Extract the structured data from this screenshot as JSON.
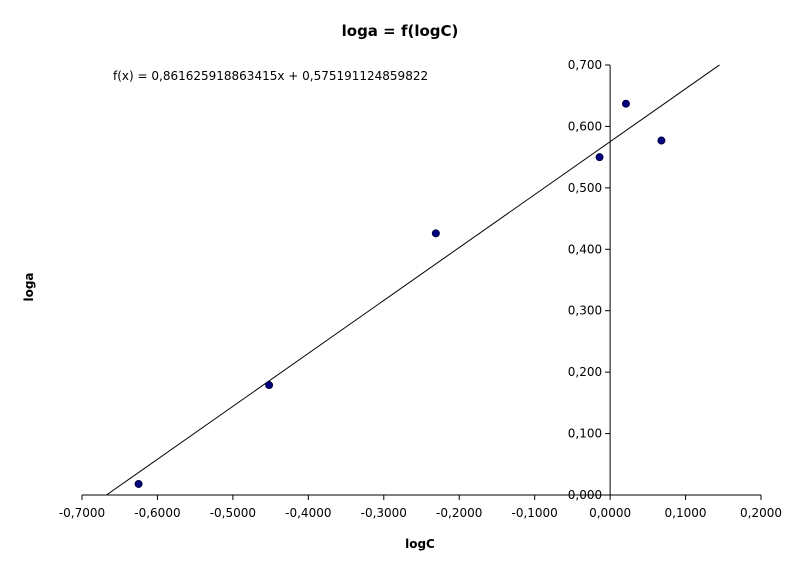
{
  "chart_data": {
    "type": "scatter",
    "title": "loga = f(logC)",
    "xlabel": "logC",
    "ylabel": "loga",
    "xlim": [
      -0.7,
      0.2
    ],
    "ylim": [
      0.0,
      0.7
    ],
    "x_ticks": [
      -0.7,
      -0.6,
      -0.5,
      -0.4,
      -0.3,
      -0.2,
      -0.1,
      0.0,
      0.1,
      0.2
    ],
    "x_tick_labels": [
      "-0,7000",
      "-0,6000",
      "-0,5000",
      "-0,4000",
      "-0,3000",
      "-0,2000",
      "-0,1000",
      "0,0000",
      "0,1000",
      "0,2000"
    ],
    "y_ticks": [
      0.0,
      0.1,
      0.2,
      0.3,
      0.4,
      0.5,
      0.6,
      0.7
    ],
    "y_tick_labels": [
      "0,000",
      "0,100",
      "0,200",
      "0,300",
      "0,400",
      "0,500",
      "0,600",
      "0,700"
    ],
    "grid": false,
    "point_color": "#000080",
    "series": [
      {
        "x": [
          -0.625,
          -0.452,
          -0.231,
          -0.014,
          0.021,
          0.068
        ],
        "y": [
          0.018,
          0.179,
          0.426,
          0.55,
          0.637,
          0.577
        ]
      }
    ],
    "trendline": {
      "slope": 0.861625918863415,
      "intercept": 0.575191124859822,
      "x_range": [
        -0.668,
        0.145
      ],
      "equation_label": "f(x) = 0,861625918863415x + 0,575191124859822"
    }
  }
}
